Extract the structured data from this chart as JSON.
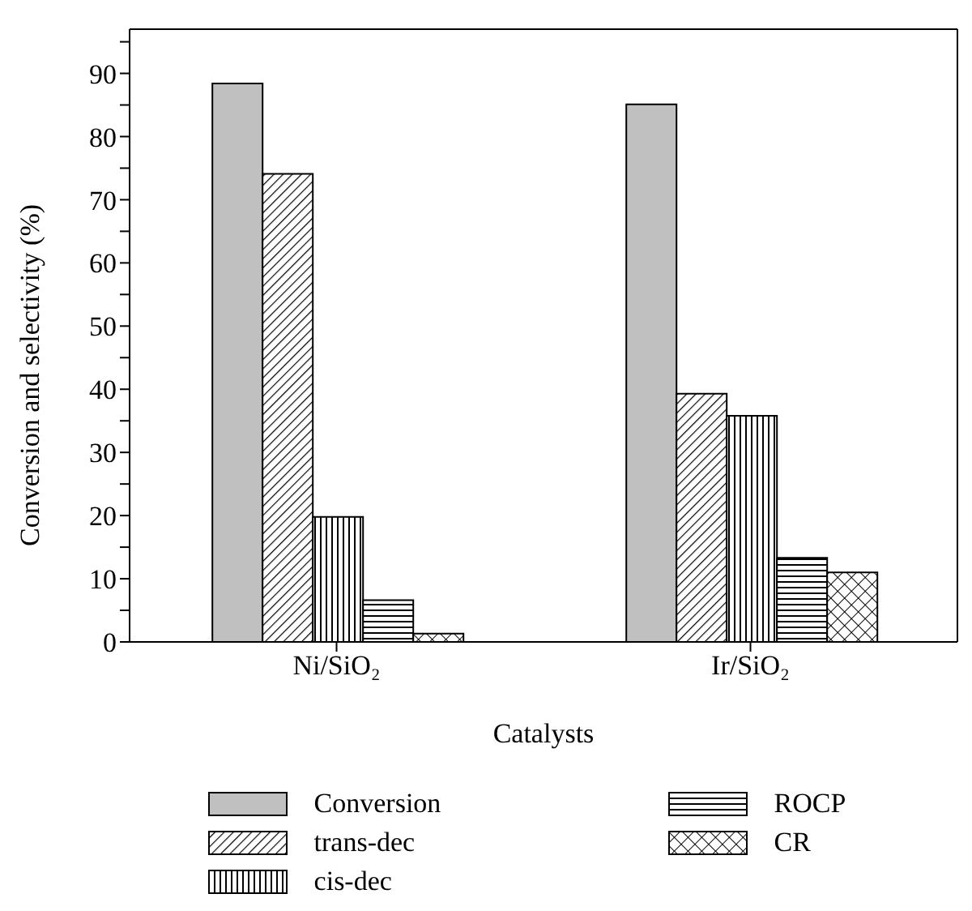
{
  "chart_data": {
    "type": "bar",
    "xlabel": "Catalysts",
    "ylabel": "Conversion and selectivity (%)",
    "categories": [
      "Ni/SiO₂",
      "Ir/SiO₂"
    ],
    "series": [
      {
        "name": "Conversion",
        "color": "#c0c0c0",
        "values": [
          88.4,
          85.1
        ]
      },
      {
        "name": "trans-dec",
        "color": "#000000",
        "values": [
          74.1,
          39.3
        ]
      },
      {
        "name": "cis-dec",
        "color": "#000000",
        "values": [
          19.8,
          35.8
        ]
      },
      {
        "name": "ROCP",
        "color": "#000000",
        "values": [
          6.6,
          13.3
        ]
      },
      {
        "name": "CR",
        "color": "#000000",
        "values": [
          1.3,
          11.0
        ]
      }
    ],
    "ylim": [
      0,
      97
    ],
    "yticks": [
      0,
      {
        "value": 5,
        "label": null
      },
      10,
      {
        "value": 15,
        "label": null
      },
      20,
      {
        "value": 25,
        "label": null
      },
      30,
      {
        "value": 35,
        "label": null
      },
      40,
      {
        "value": 45,
        "label": null
      },
      50,
      {
        "value": 55,
        "label": null
      },
      60,
      {
        "value": 65,
        "label": null
      },
      70,
      {
        "value": 75,
        "label": null
      },
      80,
      {
        "value": 85,
        "label": null
      },
      90,
      {
        "value": 95,
        "label": null
      }
    ],
    "legend": "bottom"
  }
}
